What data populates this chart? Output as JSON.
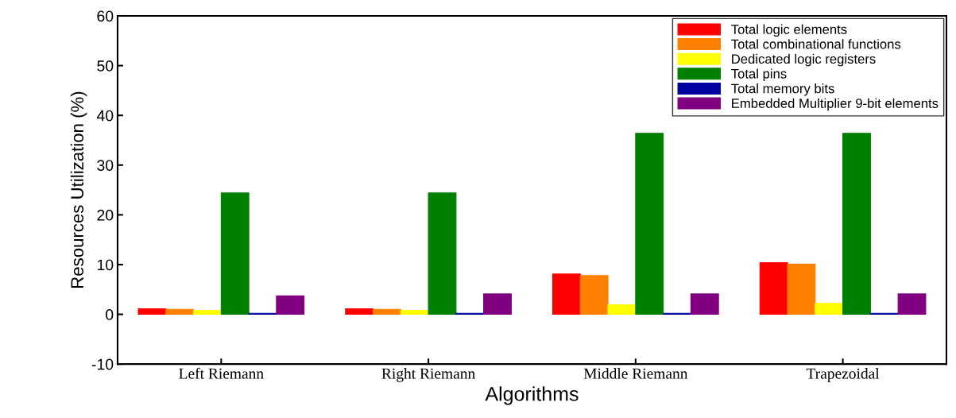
{
  "chart_data": {
    "type": "bar",
    "xlabel": "Algorithms",
    "ylabel": "Resources Utilization (%)",
    "categories": [
      "Left Riemann",
      "Right Riemann",
      "Middle Riemann",
      "Trapezoidal"
    ],
    "series": [
      {
        "name": "Total logic elements",
        "color": "#ff0000",
        "values": [
          1.1,
          1.1,
          8.1,
          10.4
        ]
      },
      {
        "name": "Total combinational functions",
        "color": "#ff8000",
        "values": [
          1.0,
          1.0,
          7.8,
          10.1
        ]
      },
      {
        "name": "Dedicated logic registers",
        "color": "#ffff00",
        "values": [
          0.8,
          0.8,
          1.9,
          2.2
        ]
      },
      {
        "name": "Total pins",
        "color": "#008000",
        "values": [
          24.4,
          24.4,
          36.4,
          36.4
        ]
      },
      {
        "name": "Total memory bits",
        "color": "#0000a0",
        "values": [
          0.2,
          0.2,
          0.2,
          0.2
        ]
      },
      {
        "name": "Embedded Multiplier 9-bit elements",
        "color": "#800080",
        "values": [
          3.7,
          4.1,
          4.1,
          4.1
        ]
      }
    ],
    "ylim": [
      -10,
      60
    ],
    "yticks": [
      -10,
      0,
      10,
      20,
      30,
      40,
      50,
      60
    ],
    "grid": false,
    "legend": "top right"
  }
}
